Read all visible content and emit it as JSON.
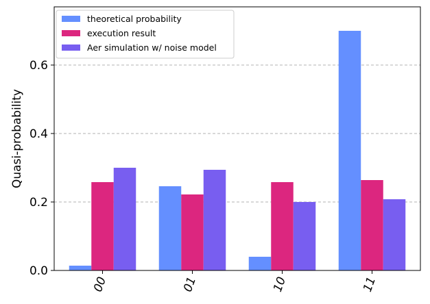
{
  "chart_data": {
    "type": "bar",
    "categories": [
      "00",
      "01",
      "10",
      "11"
    ],
    "series": [
      {
        "name": "theoretical probability",
        "color": "#648fff",
        "values": [
          0.014,
          0.246,
          0.04,
          0.7
        ]
      },
      {
        "name": "execution result",
        "color": "#dc267f",
        "values": [
          0.258,
          0.222,
          0.258,
          0.264
        ]
      },
      {
        "name": "Aer simulation w/ noise model",
        "color": "#785ef0",
        "values": [
          0.3,
          0.294,
          0.2,
          0.208
        ]
      }
    ],
    "title": "",
    "xlabel": "",
    "ylabel": "Quasi-probability",
    "ylim": [
      0,
      0.77
    ],
    "yticks": [
      0.0,
      0.2,
      0.4,
      0.6
    ],
    "ytick_labels": [
      "0.0",
      "0.2",
      "0.4",
      "0.6"
    ],
    "xtick_rotation_deg": -70,
    "grid": "horizontal dashed at 0.2, 0.4, 0.6",
    "legend_position": "top-left"
  }
}
